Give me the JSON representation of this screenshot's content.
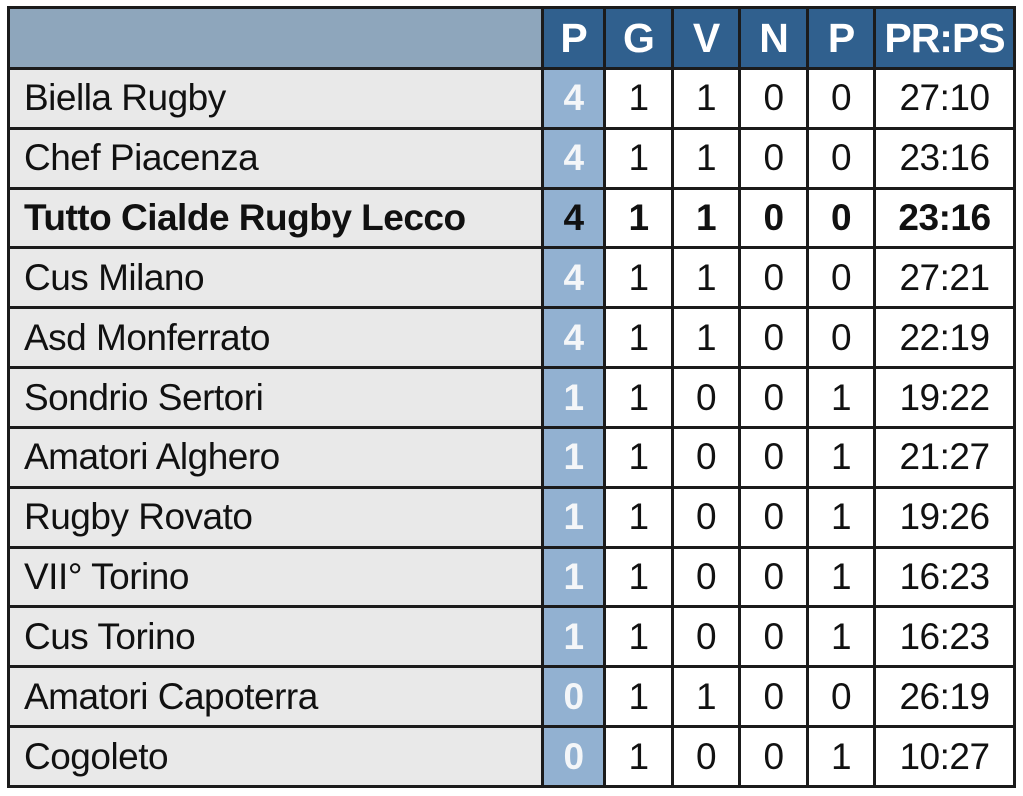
{
  "chart_data": {
    "type": "table",
    "columns": [
      "",
      "P",
      "G",
      "V",
      "N",
      "P",
      "PR:PS"
    ],
    "rows": [
      {
        "team": "Biella Rugby",
        "p": "4",
        "g": "1",
        "v": "1",
        "n": "0",
        "p2": "0",
        "prps": "27:10",
        "highlight": false
      },
      {
        "team": "Chef Piacenza",
        "p": "4",
        "g": "1",
        "v": "1",
        "n": "0",
        "p2": "0",
        "prps": "23:16",
        "highlight": false
      },
      {
        "team": "Tutto Cialde Rugby Lecco",
        "p": "4",
        "g": "1",
        "v": "1",
        "n": "0",
        "p2": "0",
        "prps": "23:16",
        "highlight": true
      },
      {
        "team": "Cus Milano",
        "p": "4",
        "g": "1",
        "v": "1",
        "n": "0",
        "p2": "0",
        "prps": "27:21",
        "highlight": false
      },
      {
        "team": "Asd Monferrato",
        "p": "4",
        "g": "1",
        "v": "1",
        "n": "0",
        "p2": "0",
        "prps": "22:19",
        "highlight": false
      },
      {
        "team": "Sondrio Sertori",
        "p": "1",
        "g": "1",
        "v": "0",
        "n": "0",
        "p2": "1",
        "prps": "19:22",
        "highlight": false
      },
      {
        "team": "Amatori Alghero",
        "p": "1",
        "g": "1",
        "v": "0",
        "n": "0",
        "p2": "1",
        "prps": "21:27",
        "highlight": false
      },
      {
        "team": "Rugby Rovato",
        "p": "1",
        "g": "1",
        "v": "0",
        "n": "0",
        "p2": "1",
        "prps": "19:26",
        "highlight": false
      },
      {
        "team": "VII° Torino",
        "p": "1",
        "g": "1",
        "v": "0",
        "n": "0",
        "p2": "1",
        "prps": "16:23",
        "highlight": false
      },
      {
        "team": "Cus Torino",
        "p": "1",
        "g": "1",
        "v": "0",
        "n": "0",
        "p2": "1",
        "prps": "16:23",
        "highlight": false
      },
      {
        "team": "Amatori Capoterra",
        "p": "0",
        "g": "1",
        "v": "1",
        "n": "0",
        "p2": "0",
        "prps": "26:19",
        "highlight": false
      },
      {
        "team": "Cogoleto",
        "p": "0",
        "g": "1",
        "v": "0",
        "n": "0",
        "p2": "1",
        "prps": "10:27",
        "highlight": false
      }
    ]
  },
  "colors": {
    "header_bg": "#30608e",
    "header_corner_bg": "#8ea6bc",
    "header_text": "#ffffff",
    "points_col_bg": "#92b1d1",
    "points_text": "#f4f6f8",
    "team_col_bg": "#e9e9e9",
    "border": "#1b1b1b"
  }
}
